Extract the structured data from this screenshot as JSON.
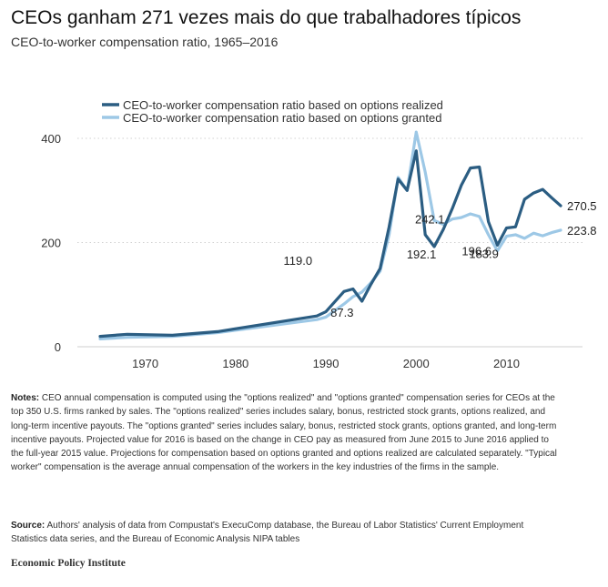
{
  "page": {
    "title": "CEOs ganham 271 vezes mais do que trabalhadores típicos",
    "subtitle": "CEO-to-worker compensation ratio, 1965–2016",
    "notes_label": "Notes:",
    "notes_text": "CEO annual compensation is computed using the \"options realized\" and \"options granted\" compensation series for CEOs at the top 350 U.S. firms ranked by sales. The \"options realized\" series includes salary, bonus, restricted stock grants, options realized, and long-term incentive payouts. The \"options granted\" series includes salary, bonus, restricted stock grants, options granted, and long-term incentive payouts. Projected value for 2016 is based on the change in CEO pay as measured from June 2015 to June 2016 applied to the full-year 2015 value. Projections for compensation based on options granted and options realized are calculated separately. \"Typical worker\" compensation is the average annual compensation of the workers in the key industries of the firms in the sample.",
    "source_label": "Source:",
    "source_text": "Authors' analysis of data from Compustat's ExecuComp database, the Bureau of Labor Statistics' Current Employment Statistics data series, and the Bureau of Economic Analysis NIPA tables",
    "publisher": "Economic Policy Institute"
  },
  "chart_data": {
    "type": "line",
    "title": "CEO-to-worker compensation ratio, 1965–2016",
    "xlabel": "",
    "ylabel": "",
    "xlim": [
      1965,
      2016
    ],
    "ylim": [
      0,
      400
    ],
    "x_ticks": [
      1970,
      1980,
      1990,
      2000,
      2010
    ],
    "y_ticks": [
      0,
      200,
      400
    ],
    "grid": "horizontal dotted",
    "legend_position": "top",
    "colors": {
      "realized": "#2b5d82",
      "granted": "#9dc8e6"
    },
    "series": [
      {
        "key": "realized",
        "name": "CEO-to-worker compensation ratio based on options realized",
        "points": [
          [
            1965,
            20
          ],
          [
            1968,
            24
          ],
          [
            1973,
            22
          ],
          [
            1978,
            29
          ],
          [
            1989,
            59
          ],
          [
            1990,
            67
          ],
          [
            1992,
            106
          ],
          [
            1993,
            111
          ],
          [
            1994,
            87.3
          ],
          [
            1995,
            120
          ],
          [
            1996,
            150
          ],
          [
            1997,
            230
          ],
          [
            1998,
            322
          ],
          [
            1999,
            300
          ],
          [
            2000,
            376
          ],
          [
            2001,
            215
          ],
          [
            2002,
            192.1
          ],
          [
            2003,
            225
          ],
          [
            2004,
            265
          ],
          [
            2005,
            310
          ],
          [
            2006,
            343
          ],
          [
            2007,
            345
          ],
          [
            2008,
            240
          ],
          [
            2009,
            195
          ],
          [
            2010,
            228
          ],
          [
            2011,
            230
          ],
          [
            2012,
            283
          ],
          [
            2013,
            295
          ],
          [
            2014,
            302
          ],
          [
            2015,
            286
          ],
          [
            2016,
            270.5
          ]
        ]
      },
      {
        "key": "granted",
        "name": "CEO-to-worker compensation ratio based on options granted",
        "points": [
          [
            1965,
            15
          ],
          [
            1968,
            18
          ],
          [
            1973,
            20
          ],
          [
            1978,
            27
          ],
          [
            1989,
            52
          ],
          [
            1990,
            57
          ],
          [
            1992,
            82
          ],
          [
            1993,
            96
          ],
          [
            1994,
            105
          ],
          [
            1995,
            123
          ],
          [
            1996,
            145
          ],
          [
            1997,
            215
          ],
          [
            1998,
            325
          ],
          [
            1999,
            300
          ],
          [
            2000,
            412
          ],
          [
            2001,
            335
          ],
          [
            2002,
            242.1
          ],
          [
            2003,
            235
          ],
          [
            2004,
            245
          ],
          [
            2005,
            248
          ],
          [
            2006,
            255
          ],
          [
            2007,
            250
          ],
          [
            2008,
            215
          ],
          [
            2009,
            183.9
          ],
          [
            2010,
            212
          ],
          [
            2011,
            215
          ],
          [
            2012,
            208
          ],
          [
            2013,
            218
          ],
          [
            2014,
            213
          ],
          [
            2015,
            219
          ],
          [
            2016,
            223.8
          ]
        ]
      }
    ],
    "data_labels": [
      {
        "x": 1989,
        "y": 119.0,
        "text": "119.0"
      },
      {
        "x": 1993,
        "y": 87.3,
        "text": "87.3"
      },
      {
        "x": 2000,
        "y": 242.1,
        "text": "242.1"
      },
      {
        "x": 2002,
        "y": 192.1,
        "text": "192.1"
      },
      {
        "x": 2007,
        "y": 196.6,
        "text": "196.6"
      },
      {
        "x": 2008,
        "y": 183.9,
        "text": "183.9"
      },
      {
        "x": 2016,
        "y": 270.5,
        "text": "270.5"
      },
      {
        "x": 2016,
        "y": 223.8,
        "text": "223.8"
      }
    ]
  }
}
